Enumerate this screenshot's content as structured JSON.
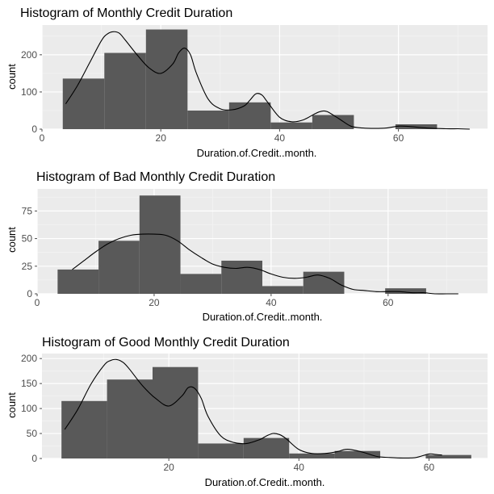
{
  "style": {
    "panel_bg": "#EBEBEB",
    "grid_major": "#FFFFFF",
    "grid_minor": "#F3F3F3",
    "bar_fill": "#595959",
    "density_line": "#000000",
    "tick_color": "#4D4D4D"
  },
  "chart_data": [
    {
      "type": "bar",
      "title": "Histogram of Monthly Credit Duration",
      "xlabel": "Duration.of.Credit..month.",
      "ylabel": "count",
      "xlim": [
        0,
        75
      ],
      "ylim": [
        0,
        280
      ],
      "xticks": [
        0,
        20,
        40,
        60
      ],
      "yticks": [
        0,
        100,
        200
      ],
      "grid": true,
      "bins": [
        {
          "x0": 3.5,
          "x1": 10.5,
          "count": 136
        },
        {
          "x0": 10.5,
          "x1": 17.5,
          "count": 205
        },
        {
          "x0": 17.5,
          "x1": 24.5,
          "count": 268
        },
        {
          "x0": 24.5,
          "x1": 31.5,
          "count": 50
        },
        {
          "x0": 31.5,
          "x1": 38.5,
          "count": 72
        },
        {
          "x0": 38.5,
          "x1": 45.5,
          "count": 18
        },
        {
          "x0": 45.5,
          "x1": 52.5,
          "count": 38
        },
        {
          "x0": 52.5,
          "x1": 59.5,
          "count": 0
        },
        {
          "x0": 59.5,
          "x1": 66.5,
          "count": 13
        }
      ],
      "density": {
        "x": [
          4,
          6,
          8,
          10,
          11,
          12,
          13,
          14,
          16,
          18,
          20,
          22,
          23,
          24,
          25,
          26,
          28,
          30,
          32,
          34,
          35,
          36,
          37,
          38,
          40,
          42,
          44,
          46,
          47,
          48,
          50,
          52,
          54,
          56,
          58,
          60,
          62,
          64,
          66,
          68,
          70,
          72
        ],
        "y": [
          68,
          118,
          178,
          238,
          256,
          262,
          258,
          240,
          200,
          165,
          150,
          175,
          205,
          218,
          200,
          150,
          80,
          55,
          52,
          62,
          78,
          95,
          92,
          72,
          32,
          20,
          25,
          42,
          48,
          47,
          28,
          8,
          3,
          2,
          3,
          8,
          7,
          4,
          2,
          1,
          1,
          0
        ]
      }
    },
    {
      "type": "bar",
      "title": "Histogram of Bad Monthly Credit Duration",
      "xlabel": "Duration.of.Credit..month.",
      "ylabel": "count",
      "xlim": [
        0,
        77
      ],
      "ylim": [
        0,
        95
      ],
      "xticks": [
        0,
        20,
        40,
        60
      ],
      "yticks": [
        0,
        25,
        50,
        75
      ],
      "grid": true,
      "bins": [
        {
          "x0": 3.5,
          "x1": 10.5,
          "count": 22
        },
        {
          "x0": 10.5,
          "x1": 17.5,
          "count": 48
        },
        {
          "x0": 17.5,
          "x1": 24.5,
          "count": 89
        },
        {
          "x0": 24.5,
          "x1": 31.5,
          "count": 18
        },
        {
          "x0": 31.5,
          "x1": 38.5,
          "count": 30
        },
        {
          "x0": 38.5,
          "x1": 45.5,
          "count": 7
        },
        {
          "x0": 45.5,
          "x1": 52.5,
          "count": 20
        },
        {
          "x0": 52.5,
          "x1": 59.5,
          "count": 0
        },
        {
          "x0": 59.5,
          "x1": 66.5,
          "count": 5
        }
      ],
      "density": {
        "x": [
          6,
          8,
          10,
          12,
          14,
          16,
          18,
          20,
          22,
          24,
          26,
          28,
          30,
          32,
          34,
          36,
          38,
          40,
          42,
          44,
          46,
          48,
          50,
          52,
          54,
          56,
          58,
          60,
          62,
          64,
          66,
          68,
          70,
          72
        ],
        "y": [
          22,
          30,
          38,
          45,
          50,
          53,
          54,
          54,
          53,
          48,
          40,
          33,
          27,
          24,
          23,
          24,
          22,
          18,
          15,
          14,
          15,
          17,
          14,
          8,
          4,
          3,
          2,
          2,
          2,
          1,
          1,
          0,
          0,
          0
        ]
      }
    },
    {
      "type": "bar",
      "title": "Histogram of Good Monthly Credit Duration",
      "xlabel": "Duration.of.Credit..month.",
      "ylabel": "count",
      "xlim": [
        0.5,
        69
      ],
      "ylim": [
        0,
        210
      ],
      "xticks": [
        20,
        40,
        60
      ],
      "yticks": [
        0,
        50,
        100,
        150,
        200
      ],
      "grid": true,
      "bins": [
        {
          "x0": 3.5,
          "x1": 10.5,
          "count": 115
        },
        {
          "x0": 10.5,
          "x1": 17.5,
          "count": 158
        },
        {
          "x0": 17.5,
          "x1": 24.5,
          "count": 183
        },
        {
          "x0": 24.5,
          "x1": 31.5,
          "count": 30
        },
        {
          "x0": 31.5,
          "x1": 38.5,
          "count": 41
        },
        {
          "x0": 38.5,
          "x1": 45.5,
          "count": 10
        },
        {
          "x0": 45.5,
          "x1": 52.5,
          "count": 15
        },
        {
          "x0": 52.5,
          "x1": 59.5,
          "count": 0
        },
        {
          "x0": 59.5,
          "x1": 66.5,
          "count": 7
        }
      ],
      "density": {
        "x": [
          4,
          6,
          8,
          10,
          11,
          12,
          13,
          14,
          16,
          18,
          20,
          22,
          23,
          24,
          25,
          26,
          28,
          30,
          32,
          34,
          35,
          36,
          37,
          38,
          40,
          42,
          44,
          46,
          47,
          48,
          50,
          52,
          54,
          56,
          58,
          60,
          61,
          62
        ],
        "y": [
          58,
          98,
          148,
          186,
          196,
          198,
          192,
          178,
          145,
          120,
          105,
          125,
          142,
          140,
          120,
          85,
          45,
          32,
          30,
          38,
          45,
          50,
          48,
          40,
          18,
          10,
          10,
          14,
          18,
          18,
          12,
          4,
          2,
          1,
          2,
          9,
          8,
          7
        ]
      }
    }
  ]
}
